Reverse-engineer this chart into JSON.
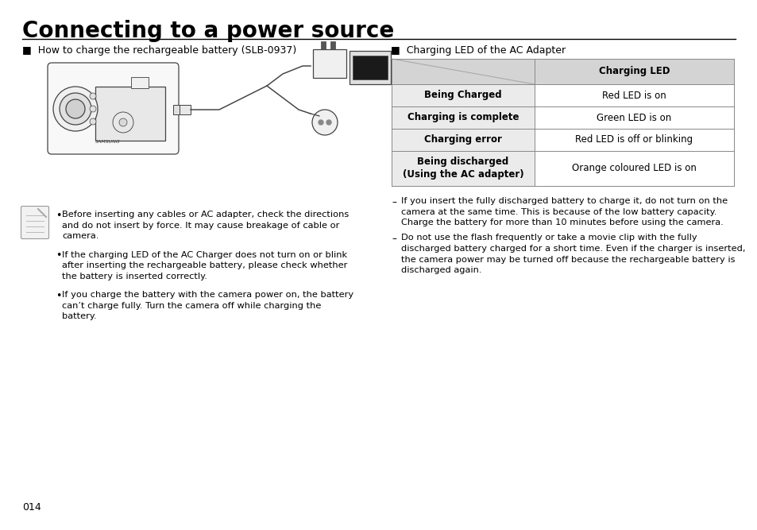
{
  "title": "Connecting to a power source",
  "bg_color": "#ffffff",
  "left_header": "■  How to charge the rechargeable battery (SLB-0937)",
  "right_header": "■  Charging LED of the AC Adapter",
  "table_header": "Charging LED",
  "table_rows": [
    {
      "label": "Being Charged",
      "value": "Red LED is on"
    },
    {
      "label": "Charging is complete",
      "value": "Green LED is on"
    },
    {
      "label": "Charging error",
      "value": "Red LED is off or blinking"
    },
    {
      "label": "Being discharged\n(Using the AC adapter)",
      "value": "Orange coloured LED is on"
    }
  ],
  "table_header_bg": "#d4d4d4",
  "table_label_bg": "#ebebeb",
  "table_value_bg": "#ffffff",
  "bullet_points": [
    "Before inserting any cables or AC adapter, check the directions\nand do not insert by force. It may cause breakage of cable or\ncamera.",
    "If the charging LED of the AC Charger does not turn on or blink\nafter inserting the rechargeable battery, please check whether\nthe battery is inserted correctly.",
    "If you charge the battery with the camera power on, the battery\ncan’t charge fully. Turn the camera off while charging the\nbattery."
  ],
  "dash_points": [
    "If you insert the fully discharged battery to charge it, do not turn on the\ncamera at the same time. This is because of the low battery capacity.\nCharge the battery for more than 10 minutes before using the camera.",
    "Do not use the flash frequently or take a movie clip with the fully\ndischarged battery charged for a short time. Even if the charger is inserted,\nthe camera power may be turned off because the rechargeable battery is\ndischarged again."
  ],
  "page_number": "014"
}
